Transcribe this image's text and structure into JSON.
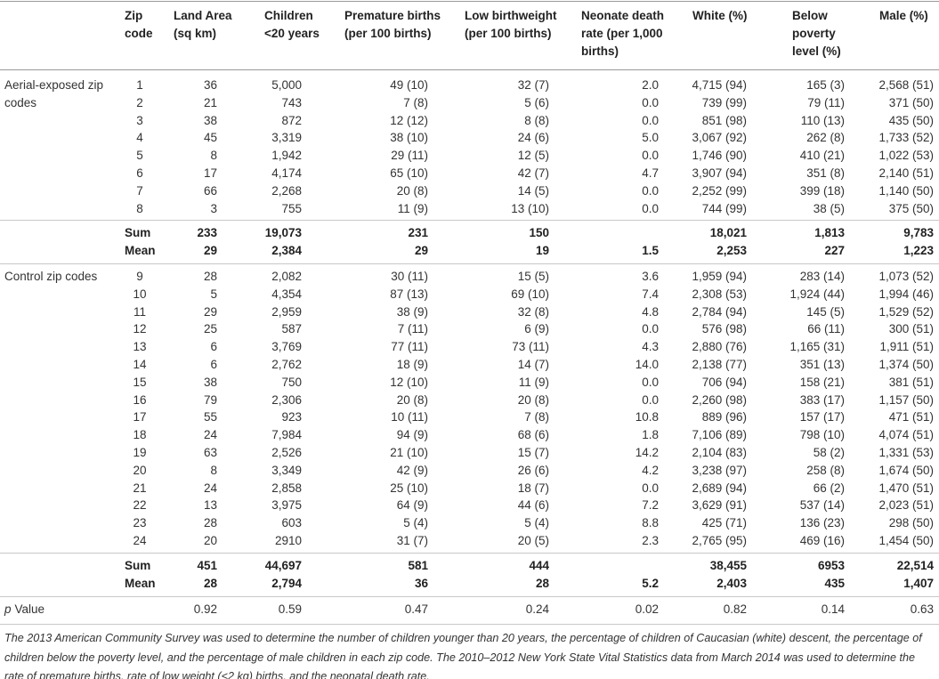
{
  "header": {
    "columns": [
      "Zip\ncode",
      "Land Area\n(sq km)",
      "Children\n<20 years",
      "Premature births\n(per 100 births)",
      "Low birthweight\n(per 100 births)",
      "Neonate death\nrate (per 1,000\nbirths)",
      "White (%)",
      "Below\npoverty\nlevel (%)",
      "Male (%)"
    ]
  },
  "groups": [
    {
      "label": "Aerial-exposed zip codes",
      "rows": [
        [
          "1",
          "36",
          "5,000",
          "49 (10)",
          "32 (7)",
          "2.0",
          "4,715 (94)",
          "165 (3)",
          "2,568 (51)"
        ],
        [
          "2",
          "21",
          "743",
          "7 (8)",
          "5 (6)",
          "0.0",
          "739 (99)",
          "79 (11)",
          "371 (50)"
        ],
        [
          "3",
          "38",
          "872",
          "12 (12)",
          "8 (8)",
          "0.0",
          "851 (98)",
          "110 (13)",
          "435 (50)"
        ],
        [
          "4",
          "45",
          "3,319",
          "38 (10)",
          "24 (6)",
          "5.0",
          "3,067 (92)",
          "262 (8)",
          "1,733 (52)"
        ],
        [
          "5",
          "8",
          "1,942",
          "29 (11)",
          "12 (5)",
          "0.0",
          "1,746 (90)",
          "410 (21)",
          "1,022 (53)"
        ],
        [
          "6",
          "17",
          "4,174",
          "65 (10)",
          "42 (7)",
          "4.7",
          "3,907 (94)",
          "351 (8)",
          "2,140 (51)"
        ],
        [
          "7",
          "66",
          "2,268",
          "20 (8)",
          "14 (5)",
          "0.0",
          "2,252 (99)",
          "399 (18)",
          "1,140 (50)"
        ],
        [
          "8",
          "3",
          "755",
          "11 (9)",
          "13 (10)",
          "0.0",
          "744 (99)",
          "38 (5)",
          "375 (50)"
        ]
      ],
      "sum": {
        "label": "Sum",
        "values": [
          "233",
          "19,073",
          "231",
          "150",
          null,
          "18,021",
          "1,813",
          "9,783"
        ]
      },
      "mean": {
        "label": "Mean",
        "values": [
          "29",
          "2,384",
          "29",
          "19",
          "1.5",
          "2,253",
          "227",
          "1,223"
        ]
      }
    },
    {
      "label": "Control zip codes",
      "rows": [
        [
          "9",
          "28",
          "2,082",
          "30 (11)",
          "15 (5)",
          "3.6",
          "1,959 (94)",
          "283 (14)",
          "1,073 (52)"
        ],
        [
          "10",
          "5",
          "4,354",
          "87 (13)",
          "69 (10)",
          "7.4",
          "2,308 (53)",
          "1,924 (44)",
          "1,994 (46)"
        ],
        [
          "11",
          "29",
          "2,959",
          "38 (9)",
          "32 (8)",
          "4.8",
          "2,784 (94)",
          "145 (5)",
          "1,529 (52)"
        ],
        [
          "12",
          "25",
          "587",
          "7 (11)",
          "6 (9)",
          "0.0",
          "576 (98)",
          "66 (11)",
          "300 (51)"
        ],
        [
          "13",
          "6",
          "3,769",
          "77 (11)",
          "73 (11)",
          "4.3",
          "2,880 (76)",
          "1,165 (31)",
          "1,911 (51)"
        ],
        [
          "14",
          "6",
          "2,762",
          "18 (9)",
          "14 (7)",
          "14.0",
          "2,138 (77)",
          "351 (13)",
          "1,374 (50)"
        ],
        [
          "15",
          "38",
          "750",
          "12 (10)",
          "11 (9)",
          "0.0",
          "706 (94)",
          "158 (21)",
          "381 (51)"
        ],
        [
          "16",
          "79",
          "2,306",
          "20 (8)",
          "20 (8)",
          "0.0",
          "2,260 (98)",
          "383 (17)",
          "1,157 (50)"
        ],
        [
          "17",
          "55",
          "923",
          "10 (11)",
          "7 (8)",
          "10.8",
          "889 (96)",
          "157 (17)",
          "471 (51)"
        ],
        [
          "18",
          "24",
          "7,984",
          "94 (9)",
          "68 (6)",
          "1.8",
          "7,106 (89)",
          "798 (10)",
          "4,074 (51)"
        ],
        [
          "19",
          "63",
          "2,526",
          "21 (10)",
          "15 (7)",
          "14.2",
          "2,104 (83)",
          "58 (2)",
          "1,331 (53)"
        ],
        [
          "20",
          "8",
          "3,349",
          "42 (9)",
          "26 (6)",
          "4.2",
          "3,238 (97)",
          "258 (8)",
          "1,674 (50)"
        ],
        [
          "21",
          "24",
          "2,858",
          "25 (10)",
          "18 (7)",
          "0.0",
          "2,689 (94)",
          "66 (2)",
          "1,470 (51)"
        ],
        [
          "22",
          "13",
          "3,975",
          "64 (9)",
          "44 (6)",
          "7.2",
          "3,629 (91)",
          "537 (14)",
          "2,023 (51)"
        ],
        [
          "23",
          "28",
          "603",
          "5 (4)",
          "5 (4)",
          "8.8",
          "425 (71)",
          "136 (23)",
          "298 (50)"
        ],
        [
          "24",
          "20",
          "2910",
          "31 (7)",
          "20 (5)",
          "2.3",
          "2,765 (95)",
          "469 (16)",
          "1,454 (50)"
        ]
      ],
      "sum": {
        "label": "Sum",
        "values": [
          "451",
          "44,697",
          "581",
          "444",
          null,
          "38,455",
          "6953",
          "22,514"
        ]
      },
      "mean": {
        "label": "Mean",
        "values": [
          "28",
          "2,794",
          "36",
          "28",
          "5.2",
          "2,403",
          "435",
          "1,407"
        ]
      }
    }
  ],
  "p_value": {
    "label_italic": "p",
    "label": "Value",
    "values": [
      "0.92",
      "0.59",
      "0.47",
      "0.24",
      "0.02",
      "0.82",
      "0.14",
      "0.63"
    ]
  },
  "footnote": "The 2013 American Community Survey was used to determine the number of children younger than 20 years, the percentage of children of Caucasian (white) descent, the percentage of children below the poverty level, and the percentage of male children in each zip code. The 2010–2012 New York State Vital Statistics data from March 2014 was used to determine the rate of premature births, rate of low weight (<2 kg) births, and the neonatal death rate."
}
